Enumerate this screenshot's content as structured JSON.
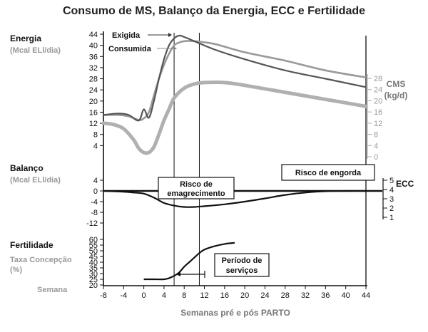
{
  "title": "Consumo de MS, Balanço da Energia, ECC e Fertilidade",
  "xaxis": {
    "label": "Semanas pré e pós PARTO",
    "row_label": "Semana",
    "ticks": [
      -8,
      -4,
      0,
      4,
      8,
      12,
      16,
      20,
      24,
      28,
      32,
      36,
      40,
      44
    ],
    "range": [
      -8,
      44
    ]
  },
  "markers": {
    "vertical_lines_weeks": [
      6,
      11,
      44
    ]
  },
  "colors": {
    "exigida": "#555555",
    "consumida": "#999999",
    "cms": "#b0b0b0",
    "balanco": "#111111",
    "fertilidade": "#111111"
  },
  "chart_data": [
    {
      "type": "line",
      "panel": "energia",
      "label_main": "Energia",
      "label_sub": "(Mcal ELl/dia)",
      "ylim": [
        0,
        44
      ],
      "yticks": [
        4,
        8,
        12,
        16,
        20,
        24,
        28,
        32,
        36,
        40,
        44
      ],
      "right_axis": {
        "label_main": "CMS",
        "label_sub": "(kg/d)",
        "ticks": [
          0,
          4,
          8,
          12,
          16,
          20,
          24,
          28
        ]
      },
      "series": [
        {
          "name": "Exigida",
          "axis": "left",
          "x": [
            -8,
            -5,
            -3,
            -1,
            0,
            1,
            2,
            3,
            4,
            5,
            6,
            7,
            8,
            10,
            14,
            20,
            28,
            36,
            44
          ],
          "y": [
            15,
            15.5,
            15,
            13,
            17,
            14,
            20,
            28,
            35,
            40,
            42.5,
            43.5,
            43,
            41.5,
            38.5,
            35,
            31,
            28,
            25
          ]
        },
        {
          "name": "Consumida",
          "axis": "left",
          "x": [
            -8,
            -5,
            -3,
            -1,
            0,
            1,
            2,
            3,
            4,
            5,
            6,
            7,
            8,
            10,
            14,
            20,
            28,
            36,
            44
          ],
          "y": [
            15,
            15,
            14.5,
            13.2,
            13.8,
            16,
            22,
            28,
            33,
            37,
            40,
            41,
            41.5,
            41.5,
            40.5,
            37.5,
            34.5,
            31,
            28.5
          ]
        },
        {
          "name": "",
          "axis": "right",
          "x": [
            -8,
            -6,
            -4,
            -2,
            -1,
            0,
            1,
            2,
            3,
            4,
            5,
            6,
            8,
            10,
            12,
            16,
            20,
            28,
            36,
            44
          ],
          "y": [
            12,
            11.5,
            10,
            6,
            3,
            1.5,
            1.5,
            3.5,
            8,
            13,
            17,
            21,
            24.5,
            26,
            26.5,
            26.5,
            25.5,
            23,
            20.5,
            18
          ]
        }
      ]
    },
    {
      "type": "line",
      "panel": "balanco",
      "label_main": "Balanço",
      "label_sub": "(Mcal ELl/dia)",
      "ylim": [
        -12,
        4
      ],
      "yticks": [
        -12,
        -8,
        -4,
        0,
        4
      ],
      "right_axis": {
        "label_main": "ECC",
        "label_sub": "",
        "ticks": [
          1,
          2,
          3,
          4,
          5
        ]
      },
      "annotations": [
        "Risco de emagrecimento",
        "Risco de engorda"
      ],
      "series": [
        {
          "name": "",
          "x": [
            -8,
            -4,
            -2,
            0,
            2,
            4,
            6,
            8,
            10,
            12,
            16,
            20,
            24,
            28,
            32,
            36,
            40,
            44
          ],
          "y": [
            0,
            -0.3,
            -0.6,
            -1,
            -2.5,
            -4.5,
            -5.5,
            -6,
            -6,
            -5.7,
            -5,
            -4,
            -2.8,
            -1.5,
            -0.6,
            -0.1,
            0,
            0
          ]
        }
      ]
    },
    {
      "type": "line",
      "panel": "fertilidade",
      "label_main": "Fertilidade",
      "label_sub": "Taxa Concepção (%)",
      "ylim": [
        20,
        60
      ],
      "yticks": [
        20,
        25,
        30,
        35,
        40,
        45,
        50,
        55,
        60
      ],
      "annotations": [
        "Período de serviços"
      ],
      "series": [
        {
          "name": "",
          "x": [
            0,
            2,
            4,
            5,
            6,
            7,
            8,
            9,
            10,
            11,
            12,
            14,
            16,
            18
          ],
          "y": [
            25,
            25,
            25,
            26,
            28,
            31,
            36,
            40,
            44,
            48,
            51,
            54,
            56,
            57
          ]
        }
      ]
    }
  ]
}
